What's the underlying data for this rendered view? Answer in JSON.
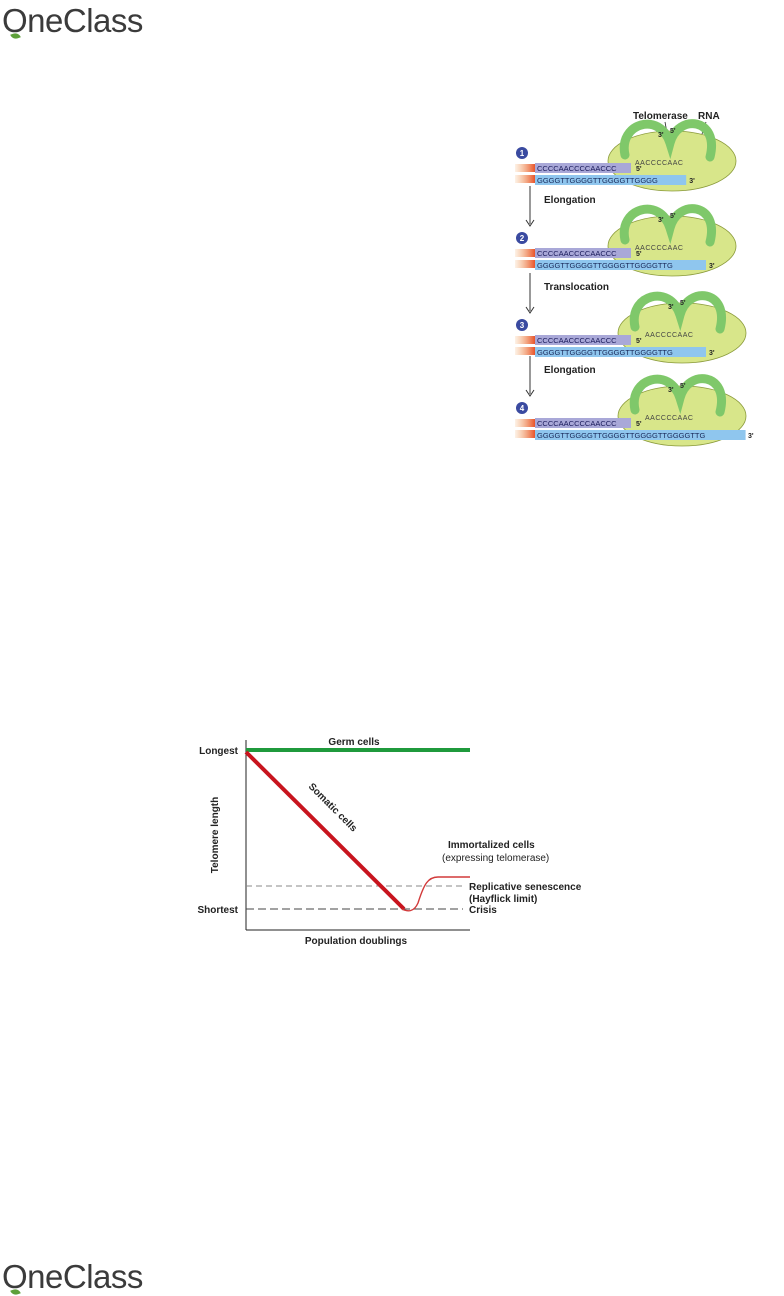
{
  "brand": {
    "logo_text": "OneClass",
    "leaf_color": "#5ea03a"
  },
  "telomerase_figure": {
    "enzyme_label": "Telomerase",
    "rna_label": "RNA",
    "end_3": "3'",
    "end_5": "5'",
    "steps": [
      {
        "number": "1",
        "arrow_label": "",
        "top_strand": "CCCCAACCCCAACCC",
        "bottom_strand": "GGGGTTGGGGTTGGGGTTGGGG",
        "rna_seq": "AACCCCAAC"
      },
      {
        "number": "2",
        "arrow_label": "Elongation",
        "top_strand": "CCCCAACCCCAACCC",
        "bottom_strand": "GGGGTTGGGGTTGGGGTTGGGGTTG",
        "rna_seq": "AACCCCAAC"
      },
      {
        "number": "3",
        "arrow_label": "Translocation",
        "top_strand": "CCCCAACCCCAACCC",
        "bottom_strand": "GGGGTTGGGGTTGGGGTTGGGGTTG",
        "rna_seq": "AACCCCAAC"
      },
      {
        "number": "4",
        "arrow_label": "Elongation",
        "top_strand": "CCCCAACCCCAACCC",
        "bottom_strand": "GGGGTTGGGGTTGGGGTTGGGGTTGGGGTTG",
        "rna_seq": "AACCCCAAC"
      }
    ],
    "colors": {
      "enzyme": "#d8e68a",
      "rna": "#7fc86a",
      "top_strand": "#a9a8d8",
      "bottom_strand": "#8fc6ee",
      "new_dna": "#e07878",
      "step_badge": "#3a4aa0"
    }
  },
  "chart_data": {
    "type": "line",
    "title": "",
    "xlabel": "Population doublings",
    "ylabel": "Telomere length",
    "y_tick_labels": {
      "top": "Longest",
      "bottom": "Shortest"
    },
    "series": [
      {
        "name": "Germ cells",
        "color": "#1f9a3c"
      },
      {
        "name": "Somatic cells",
        "color": "#c8141e"
      },
      {
        "name": "Immortalized cells",
        "sublabel": "(expressing telomerase)",
        "color": "#d23a3a"
      }
    ],
    "reference_lines": [
      {
        "label": "Replicative senescence",
        "sublabel": "(Hayflick limit)"
      },
      {
        "label": "Crisis",
        "sublabel": ""
      }
    ],
    "grid": false
  }
}
